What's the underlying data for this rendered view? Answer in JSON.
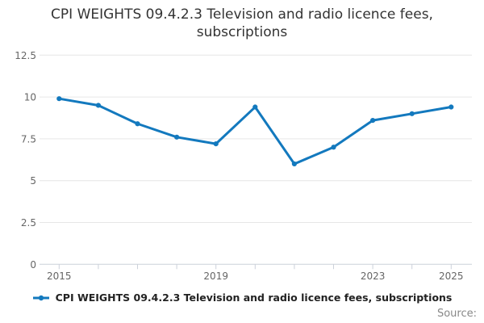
{
  "title": {
    "line1": "CPI WEIGHTS 09.4.2.3 Television and radio licence fees,",
    "line2": "subscriptions"
  },
  "legend": {
    "label": "CPI WEIGHTS 09.4.2.3 Television and radio licence fees, subscriptions"
  },
  "source_label": "Source:",
  "colors": {
    "line": "#1379BE",
    "grid": "#E6E6E6",
    "axis": "#CCD1DA",
    "axis_text": "#666666",
    "title_text": "#333333",
    "legend_text": "#222222",
    "source_text": "#888888"
  },
  "chart_data": {
    "type": "line",
    "title": "CPI WEIGHTS 09.4.2.3 Television and radio licence fees, subscriptions",
    "x": [
      2015,
      2016,
      2017,
      2018,
      2019,
      2020,
      2021,
      2022,
      2023,
      2024,
      2025
    ],
    "series": [
      {
        "name": "CPI WEIGHTS 09.4.2.3 Television and radio licence fees, subscriptions",
        "values": [
          9.9,
          9.5,
          8.4,
          7.6,
          7.2,
          9.4,
          6.0,
          7.0,
          8.6,
          9.0,
          9.4
        ]
      }
    ],
    "xlabel": "",
    "ylabel": "",
    "ylim": [
      0,
      12.5
    ],
    "yticks": [
      0,
      2.5,
      5,
      7.5,
      10,
      12.5
    ],
    "ytick_labels": [
      "0",
      "2.5",
      "5",
      "7.5",
      "10",
      "12.5"
    ],
    "xtick_labels": [
      "2015",
      "2019",
      "2023",
      "2025"
    ],
    "grid": "horizontal-only",
    "legend_position": "bottom",
    "marker": "dot"
  }
}
